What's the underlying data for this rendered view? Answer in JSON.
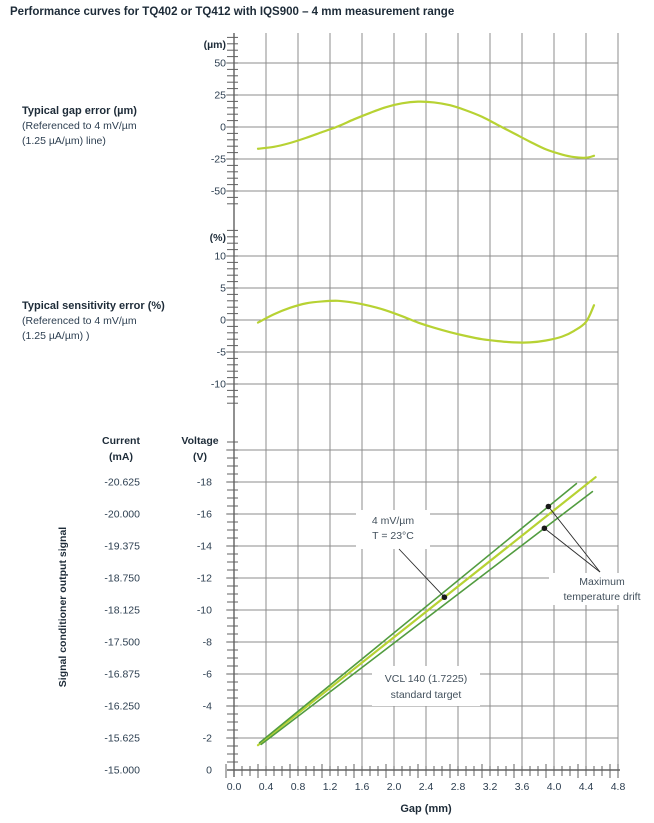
{
  "title": "Performance curves for TQ402 or TQ412 with IQS900 – 4 mm measurement range",
  "colors": {
    "curve": "#b7d233",
    "drift": "#529c40",
    "grid": "#8c8c8c",
    "axis": "#606060",
    "text": "#2c3e50",
    "header_text": "#1d2b38",
    "annotation_text": "#42505c",
    "marker": "#1a1a1a"
  },
  "left_labels": {
    "gap_error": {
      "title": "Typical gap error (µm)",
      "line2": "(Referenced to 4 mV/µm",
      "line3": "(1.25 µA/µm) line)"
    },
    "sensitivity_error": {
      "title": "Typical sensitivity error (%)",
      "line2": "(Referenced to 4 mV/µm",
      "line3": "(1.25 µA/µm) )"
    },
    "output_signal": "Signal conditioner output signal"
  },
  "x_axis": {
    "label": "Gap (mm)",
    "range": [
      0,
      4.8
    ],
    "major_step": 0.4,
    "minor_step": 0.1,
    "tick_labels": [
      "0.0",
      "0.4",
      "0.8",
      "1.2",
      "1.6",
      "2.0",
      "2.4",
      "2.8",
      "3.2",
      "3.6",
      "4.0",
      "4.4",
      "4.8"
    ]
  },
  "chart_data": [
    {
      "id": "gap_error",
      "type": "line",
      "title": "Typical gap error (µm)",
      "y_unit": "(µm)",
      "ylim": [
        -62.5,
        73.5
      ],
      "y_ticks": [
        50,
        25,
        0,
        -25,
        -50
      ],
      "y_minor_step": 5,
      "grid": true,
      "x": [
        0.3,
        0.5,
        0.7,
        0.9,
        1.1,
        1.3,
        1.5,
        1.7,
        1.9,
        2.1,
        2.3,
        2.5,
        2.7,
        2.9,
        3.1,
        3.3,
        3.5,
        3.7,
        3.9,
        4.1,
        4.25,
        4.4,
        4.5
      ],
      "values": [
        -17,
        -15.5,
        -12.5,
        -8.5,
        -4,
        0.5,
        6,
        11,
        15.5,
        18.5,
        19.8,
        19.2,
        17,
        13,
        8,
        1.5,
        -5,
        -11.5,
        -17.5,
        -21.5,
        -23.5,
        -24,
        -22.5
      ]
    },
    {
      "id": "sensitivity_error",
      "type": "line",
      "title": "Typical sensitivity error (%)",
      "y_unit": "(%)",
      "ylim": [
        -14,
        15
      ],
      "y_ticks": [
        10,
        5,
        0,
        -5,
        -10
      ],
      "y_minor_step": 1,
      "grid": true,
      "x": [
        0.3,
        0.5,
        0.7,
        0.9,
        1.1,
        1.3,
        1.5,
        1.7,
        1.9,
        2.1,
        2.3,
        2.5,
        2.7,
        2.9,
        3.1,
        3.3,
        3.5,
        3.7,
        3.9,
        4.1,
        4.25,
        4.4,
        4.5
      ],
      "values": [
        -0.4,
        0.9,
        1.9,
        2.6,
        2.9,
        3.0,
        2.7,
        2.2,
        1.5,
        0.6,
        -0.4,
        -1.2,
        -1.9,
        -2.5,
        -3.0,
        -3.3,
        -3.5,
        -3.5,
        -3.2,
        -2.6,
        -1.7,
        -0.3,
        2.3
      ]
    },
    {
      "id": "output_signal",
      "type": "line",
      "title": "Signal conditioner output signal",
      "xlabel": "Gap (mm)",
      "ylim_voltage": [
        -21.1,
        0
      ],
      "y_grid_voltage": [
        0,
        -2,
        -4,
        -6,
        -8,
        -10,
        -12,
        -14,
        -16,
        -18,
        -20
      ],
      "y_minor_step_voltage": 0.5,
      "grid": true,
      "y_axes": {
        "current": {
          "header": [
            "Current",
            "(mA)"
          ],
          "tick_labels": [
            "-20.625",
            "-20.000",
            "-19.375",
            "-18.750",
            "-18.125",
            "-17.500",
            "-16.875",
            "-16.250",
            "-15.625",
            "-15.000"
          ]
        },
        "voltage": {
          "header": [
            "Voltage",
            "(V)"
          ],
          "tick_labels": [
            "-18",
            "-16",
            "-14",
            "-12",
            "-10",
            "-8",
            "-6",
            "-4",
            "-2",
            "0"
          ]
        }
      },
      "series": [
        {
          "name": "nominal",
          "color_key": "curve",
          "width": 2.2,
          "points": [
            [
              0.3,
              -1.55
            ],
            [
              4.52,
              -18.3
            ]
          ]
        },
        {
          "name": "drift_upper",
          "color_key": "drift",
          "width": 1.6,
          "points": [
            [
              0.32,
              -1.7
            ],
            [
              4.28,
              -17.9
            ]
          ]
        },
        {
          "name": "drift_lower",
          "color_key": "drift",
          "width": 1.6,
          "points": [
            [
              0.34,
              -1.6
            ],
            [
              4.48,
              -17.4
            ]
          ]
        }
      ],
      "markers": [
        {
          "id": "nominal_dot",
          "on": "nominal",
          "gap": 2.63
        },
        {
          "id": "upper_dot",
          "on": "drift_upper",
          "gap": 3.93
        },
        {
          "id": "lower_dot",
          "on": "drift_lower",
          "gap": 3.88
        }
      ],
      "annotations": [
        {
          "id": "nominal-label",
          "lines": [
            "4 mV/µm",
            "T = 23°C"
          ],
          "points_to": [
            "nominal_dot"
          ]
        },
        {
          "id": "drift-label",
          "lines": [
            "Maximum",
            "temperature drift"
          ],
          "points_to": [
            "upper_dot",
            "lower_dot"
          ]
        },
        {
          "id": "target-label",
          "lines": [
            "VCL 140 (1.7225)",
            "standard target"
          ],
          "points_to": []
        }
      ]
    }
  ]
}
